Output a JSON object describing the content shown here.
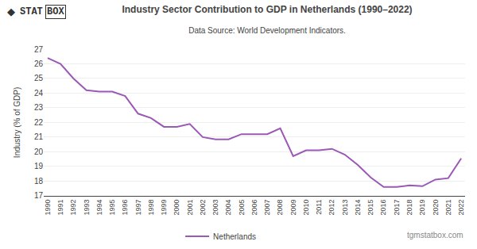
{
  "chart_data": {
    "type": "line",
    "title": "Industry Sector Contribution to GDP in Netherlands (1990–2022)",
    "subtitle": "Data Source: World Development Indicators.",
    "ylabel": "Industry (% of GDP)",
    "x": [
      1990,
      1991,
      1992,
      1993,
      1994,
      1995,
      1996,
      1997,
      1998,
      1999,
      2000,
      2001,
      2002,
      2003,
      2004,
      2005,
      2006,
      2007,
      2008,
      2009,
      2010,
      2011,
      2012,
      2013,
      2014,
      2015,
      2016,
      2017,
      2018,
      2019,
      2020,
      2021,
      2022
    ],
    "series": [
      {
        "name": "Netherlands",
        "color": "#9b59b6",
        "values": [
          26.4,
          26.0,
          25.0,
          24.2,
          24.1,
          24.1,
          23.8,
          22.6,
          22.3,
          21.7,
          21.7,
          21.9,
          21.0,
          20.85,
          20.85,
          21.2,
          21.2,
          21.2,
          21.6,
          19.7,
          20.1,
          20.1,
          20.2,
          19.8,
          19.1,
          18.25,
          17.6,
          17.6,
          17.7,
          17.65,
          18.1,
          18.2,
          19.55
        ]
      }
    ],
    "xlim": [
      1989.7,
      2022.3
    ],
    "xticks": [
      1990,
      1991,
      1992,
      1993,
      1994,
      1995,
      1996,
      1997,
      1998,
      1999,
      2000,
      2001,
      2002,
      2003,
      2004,
      2005,
      2006,
      2007,
      2008,
      2009,
      2010,
      2011,
      2012,
      2013,
      2014,
      2015,
      2016,
      2017,
      2018,
      2019,
      2020,
      2021,
      2022
    ],
    "ylim": [
      17,
      27
    ],
    "yticks": [
      17,
      18,
      19,
      20,
      21,
      22,
      23,
      24,
      25,
      26,
      27
    ],
    "grid": "y",
    "legend": "bottom",
    "annotations": [
      "◆",
      "STAT",
      "BOX",
      "tgmstatbox.com"
    ]
  }
}
